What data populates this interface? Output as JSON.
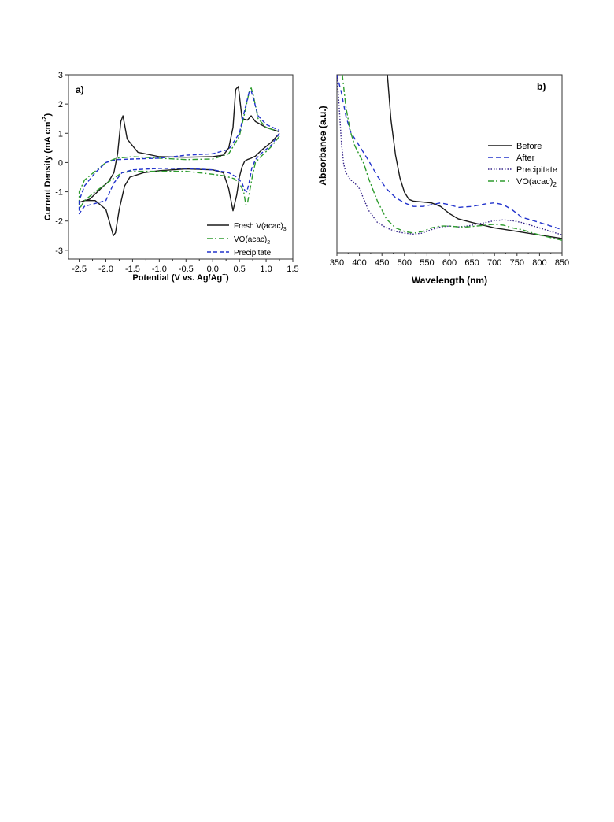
{
  "chart_data": [
    {
      "type": "line",
      "panel_label": "a)",
      "xlabel": "Potential (V vs. Ag/Ag⁺)",
      "ylabel": "Current Density (mA cm⁻²)",
      "xlim": [
        -2.7,
        1.5
      ],
      "ylim": [
        -3.3,
        3.0
      ],
      "xticks": [
        "-2.5",
        "-2.0",
        "-1.5",
        "-1.0",
        "-0.5",
        "0.0",
        "0.5",
        "1.0",
        "1.5"
      ],
      "yticks": [
        "3",
        "2",
        "1",
        "0",
        "-1",
        "-2",
        "-3"
      ],
      "xtick_values": [
        -2.5,
        -2.0,
        -1.5,
        -1.0,
        -0.5,
        0.0,
        0.5,
        1.0,
        1.5
      ],
      "ytick_values": [
        3,
        2,
        1,
        0,
        -1,
        -2,
        -3
      ],
      "grid": false,
      "legend_position": "bottom-right",
      "series": [
        {
          "name": "Fresh V(acac)3",
          "color": "#1a1a1a",
          "dash": "solid",
          "x": [
            1.25,
            1.1,
            0.9,
            0.8,
            0.72,
            0.65,
            0.6,
            0.55,
            0.5,
            0.45,
            0.38,
            0.3,
            0.2,
            0.0,
            -0.5,
            -1.0,
            -1.3,
            -1.55,
            -1.65,
            -1.75,
            -1.82,
            -1.86,
            -2.0,
            -2.2,
            -2.4,
            -2.48,
            -2.3,
            -2.1,
            -1.95,
            -1.85,
            -1.78,
            -1.72,
            -1.68,
            -1.6,
            -1.4,
            -1.0,
            -0.5,
            0.0,
            0.2,
            0.3,
            0.38,
            0.43,
            0.48,
            0.55,
            0.65,
            0.72,
            0.8,
            1.0,
            1.25
          ],
          "y": [
            1.0,
            0.7,
            0.4,
            0.22,
            0.15,
            0.1,
            0.05,
            -0.15,
            -0.5,
            -1.1,
            -1.65,
            -0.9,
            -0.35,
            -0.25,
            -0.22,
            -0.28,
            -0.35,
            -0.5,
            -0.8,
            -1.6,
            -2.4,
            -2.5,
            -1.6,
            -1.3,
            -1.3,
            -1.35,
            -1.25,
            -0.9,
            -0.65,
            -0.35,
            0.3,
            1.4,
            1.6,
            0.8,
            0.35,
            0.2,
            0.18,
            0.2,
            0.25,
            0.5,
            1.2,
            2.5,
            2.6,
            1.5,
            1.45,
            1.6,
            1.4,
            1.2,
            1.05
          ]
        },
        {
          "name": "VO(acac)2",
          "color": "#2e9c2e",
          "dash": "7,3,2,3",
          "x": [
            1.25,
            1.1,
            0.9,
            0.8,
            0.75,
            0.7,
            0.65,
            0.62,
            0.58,
            0.5,
            0.4,
            0.2,
            0.0,
            -0.5,
            -1.0,
            -1.5,
            -1.7,
            -1.9,
            -2.2,
            -2.4,
            -2.5,
            -2.5,
            -2.4,
            -2.2,
            -2.0,
            -1.8,
            -1.5,
            -1.0,
            -0.5,
            0.0,
            0.3,
            0.5,
            0.6,
            0.68,
            0.72,
            0.76,
            0.85,
            1.0,
            1.25
          ],
          "y": [
            0.9,
            0.55,
            0.2,
            0.0,
            -0.4,
            -0.9,
            -1.4,
            -1.45,
            -1.0,
            -0.7,
            -0.55,
            -0.45,
            -0.4,
            -0.3,
            -0.3,
            -0.3,
            -0.35,
            -0.6,
            -1.0,
            -1.3,
            -1.6,
            -1.0,
            -0.6,
            -0.3,
            0.0,
            0.15,
            0.2,
            0.15,
            0.1,
            0.12,
            0.3,
            0.9,
            1.7,
            2.4,
            2.55,
            2.3,
            1.5,
            1.2,
            1.05
          ]
        },
        {
          "name": "Precipitate",
          "color": "#2233cc",
          "dash": "5,3",
          "x": [
            1.25,
            1.1,
            0.9,
            0.8,
            0.73,
            0.68,
            0.64,
            0.6,
            0.55,
            0.45,
            0.3,
            0.0,
            -0.5,
            -1.0,
            -1.5,
            -1.7,
            -1.85,
            -2.0,
            -2.2,
            -2.4,
            -2.5,
            -2.5,
            -2.4,
            -2.2,
            -2.0,
            -1.8,
            -1.5,
            -1.0,
            -0.5,
            0.0,
            0.3,
            0.5,
            0.6,
            0.68,
            0.72,
            0.76,
            0.85,
            1.0,
            1.25
          ],
          "y": [
            1.0,
            0.6,
            0.3,
            0.1,
            -0.2,
            -0.7,
            -1.0,
            -0.95,
            -0.7,
            -0.5,
            -0.35,
            -0.25,
            -0.2,
            -0.2,
            -0.25,
            -0.35,
            -0.7,
            -1.3,
            -1.4,
            -1.5,
            -1.75,
            -1.3,
            -0.8,
            -0.35,
            0.0,
            0.1,
            0.12,
            0.15,
            0.25,
            0.3,
            0.45,
            1.0,
            1.8,
            2.4,
            2.45,
            2.2,
            1.6,
            1.3,
            1.1
          ]
        }
      ],
      "legend": {
        "entries": [
          {
            "main": "Fresh V(acac)",
            "sub": "3"
          },
          {
            "main": "VO(acac)",
            "sub": "2"
          },
          {
            "main": "Precipitate",
            "sub": ""
          }
        ]
      }
    },
    {
      "type": "line",
      "panel_label": "b)",
      "xlabel": "Wavelength (nm)",
      "ylabel": "Absorbance (a.u.)",
      "xlim": [
        350,
        850
      ],
      "ylim": [
        0,
        1
      ],
      "xticks": [
        "350",
        "400",
        "450",
        "500",
        "550",
        "600",
        "650",
        "700",
        "750",
        "800",
        "850"
      ],
      "xtick_values": [
        350,
        400,
        450,
        500,
        550,
        600,
        650,
        700,
        750,
        800,
        850
      ],
      "yticks": [],
      "grid": false,
      "legend_position": "top-right",
      "series": [
        {
          "name": "Before",
          "color": "#1a1a1a",
          "dash": "solid",
          "x": [
            462,
            470,
            480,
            490,
            500,
            510,
            520,
            540,
            560,
            580,
            600,
            620,
            650,
            700,
            750,
            800,
            850
          ],
          "y": [
            1.0,
            0.75,
            0.55,
            0.42,
            0.34,
            0.3,
            0.29,
            0.285,
            0.28,
            0.26,
            0.22,
            0.19,
            0.17,
            0.14,
            0.12,
            0.1,
            0.08
          ]
        },
        {
          "name": "After",
          "color": "#2233cc",
          "dash": "6,4",
          "x": [
            350,
            360,
            370,
            380,
            390,
            400,
            420,
            440,
            460,
            480,
            500,
            520,
            540,
            560,
            580,
            600,
            620,
            650,
            680,
            700,
            720,
            740,
            760,
            800,
            850
          ],
          "y": [
            1.0,
            0.9,
            0.77,
            0.68,
            0.64,
            0.6,
            0.52,
            0.43,
            0.36,
            0.31,
            0.28,
            0.26,
            0.26,
            0.27,
            0.28,
            0.27,
            0.255,
            0.26,
            0.275,
            0.28,
            0.27,
            0.24,
            0.2,
            0.17,
            0.13
          ]
        },
        {
          "name": "Precipitate",
          "color": "#332288",
          "dash": "1.5,2",
          "x": [
            350,
            355,
            360,
            365,
            370,
            375,
            380,
            390,
            400,
            410,
            420,
            440,
            460,
            480,
            500,
            520,
            540,
            560,
            580,
            600,
            620,
            640,
            660,
            680,
            700,
            720,
            740,
            760,
            800,
            850
          ],
          "y": [
            1.0,
            0.82,
            0.62,
            0.5,
            0.45,
            0.43,
            0.41,
            0.39,
            0.36,
            0.3,
            0.24,
            0.17,
            0.14,
            0.12,
            0.11,
            0.105,
            0.11,
            0.13,
            0.145,
            0.15,
            0.145,
            0.15,
            0.16,
            0.17,
            0.18,
            0.185,
            0.18,
            0.17,
            0.14,
            0.1
          ]
        },
        {
          "name": "VO(acac)2",
          "color": "#2e9c2e",
          "dash": "7,3,2,3",
          "x": [
            362,
            370,
            380,
            390,
            400,
            410,
            420,
            440,
            460,
            480,
            500,
            520,
            540,
            560,
            580,
            600,
            620,
            640,
            660,
            680,
            700,
            720,
            740,
            760,
            800,
            850
          ],
          "y": [
            1.0,
            0.82,
            0.68,
            0.6,
            0.55,
            0.5,
            0.42,
            0.29,
            0.19,
            0.14,
            0.12,
            0.11,
            0.12,
            0.14,
            0.15,
            0.15,
            0.145,
            0.145,
            0.15,
            0.155,
            0.16,
            0.155,
            0.14,
            0.13,
            0.1,
            0.07
          ]
        }
      ],
      "legend": {
        "entries": [
          {
            "main": "Before",
            "sub": ""
          },
          {
            "main": "After",
            "sub": ""
          },
          {
            "main": "Precipitate",
            "sub": ""
          },
          {
            "main": "VO(acac)",
            "sub": "2"
          }
        ]
      }
    }
  ],
  "ylabel_a_main": "Current Density (mA cm",
  "ylabel_a_sup": "-2",
  "ylabel_a_end": ")",
  "xlabel_a_main": "Potential (V vs. Ag/Ag",
  "xlabel_a_sup": "+",
  "xlabel_a_end": ")"
}
